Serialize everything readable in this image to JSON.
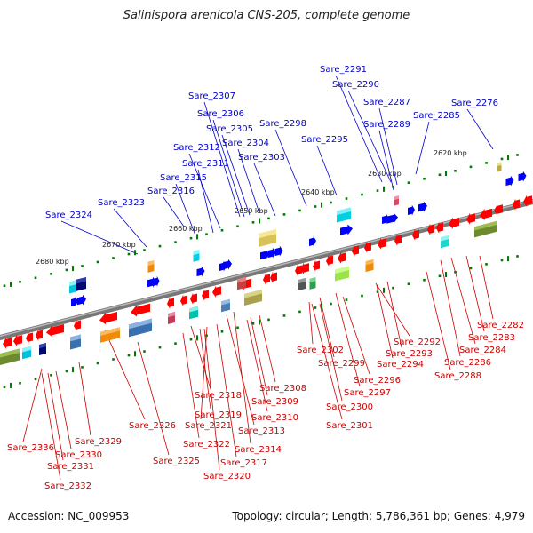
{
  "title": "Salinispora arenicola CNS-205, complete genome",
  "footer": {
    "accession": "Accession: NC_009953",
    "summary": "Topology: circular; Length: 5,786,361 bp; Genes: 4,979"
  },
  "colors": {
    "forward_label": "#0000cc",
    "reverse_label": "#cc0000",
    "forward_gene": "#0000ff",
    "reverse_gene": "#ff0000",
    "backbone": "#777777",
    "ticks": "#007a00"
  },
  "ticks": [
    {
      "label": "2620 kbp"
    },
    {
      "label": "2630 kbp"
    },
    {
      "label": "2640 kbp"
    },
    {
      "label": "2650 kbp"
    },
    {
      "label": "2660 kbp"
    },
    {
      "label": "2670 kbp"
    },
    {
      "label": "2680 kbp"
    }
  ],
  "forward_labels": [
    "Sare_2291",
    "Sare_2290",
    "Sare_2287",
    "Sare_2289",
    "Sare_2285",
    "Sare_2276",
    "Sare_2307",
    "Sare_2306",
    "Sare_2305",
    "Sare_2298",
    "Sare_2304",
    "Sare_2295",
    "Sare_2312",
    "Sare_2303",
    "Sare_2311",
    "Sare_2315",
    "Sare_2316",
    "Sare_2323",
    "Sare_2324"
  ],
  "reverse_labels": [
    "Sare_2282",
    "Sare_2283",
    "Sare_2284",
    "Sare_2292",
    "Sare_2286",
    "Sare_2293",
    "Sare_2288",
    "Sare_2294",
    "Sare_2302",
    "Sare_2299",
    "Sare_2296",
    "Sare_2297",
    "Sare_2300",
    "Sare_2301",
    "Sare_2308",
    "Sare_2309",
    "Sare_2318",
    "Sare_2310",
    "Sare_2319",
    "Sare_2321",
    "Sare_2313",
    "Sare_2326",
    "Sare_2322",
    "Sare_2314",
    "Sare_2325",
    "Sare_2317",
    "Sare_2320",
    "Sare_2329",
    "Sare_2336",
    "Sare_2330",
    "Sare_2331",
    "Sare_2332"
  ]
}
